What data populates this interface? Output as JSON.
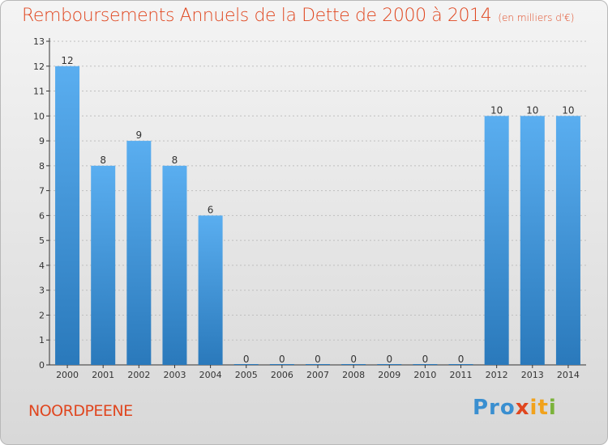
{
  "header": {
    "title": "Remboursements Annuels de la Dette de 2000 à 2014",
    "unit": "(en milliers d'€)"
  },
  "footer": {
    "commune": "NOORDPEENE",
    "logo_alt": "Proxiti",
    "logo_parts": [
      "Pro",
      "x",
      "it",
      "i"
    ]
  },
  "colors": {
    "bar_top": "#5aaef0",
    "bar_bottom": "#2a79bb",
    "title": "#e0461f",
    "axis": "#333333",
    "grid": "#bfbfbf"
  },
  "chart_data": {
    "type": "bar",
    "title": "Remboursements Annuels de la Dette de 2000 à 2014",
    "xlabel": "",
    "ylabel": "",
    "ylim": [
      0,
      13
    ],
    "yticks": [
      0,
      1,
      2,
      3,
      4,
      5,
      6,
      7,
      8,
      9,
      10,
      11,
      12,
      13
    ],
    "ytick_labels": [
      "0",
      "1",
      "2",
      "3",
      "4",
      "5",
      "6",
      "7",
      "8",
      "9",
      "10",
      "11",
      "12",
      "13"
    ],
    "categories": [
      "2000",
      "2001",
      "2002",
      "2003",
      "2004",
      "2005",
      "2006",
      "2007",
      "2008",
      "2009",
      "2010",
      "2011",
      "2012",
      "2013",
      "2014"
    ],
    "values": [
      12,
      8,
      9,
      8,
      6,
      0,
      0,
      0,
      0,
      0,
      0,
      0,
      10,
      10,
      10
    ],
    "value_labels": [
      "12",
      "8",
      "9",
      "8",
      "6",
      "0",
      "0",
      "0",
      "0",
      "0",
      "0",
      "0",
      "10",
      "10",
      "10"
    ]
  }
}
